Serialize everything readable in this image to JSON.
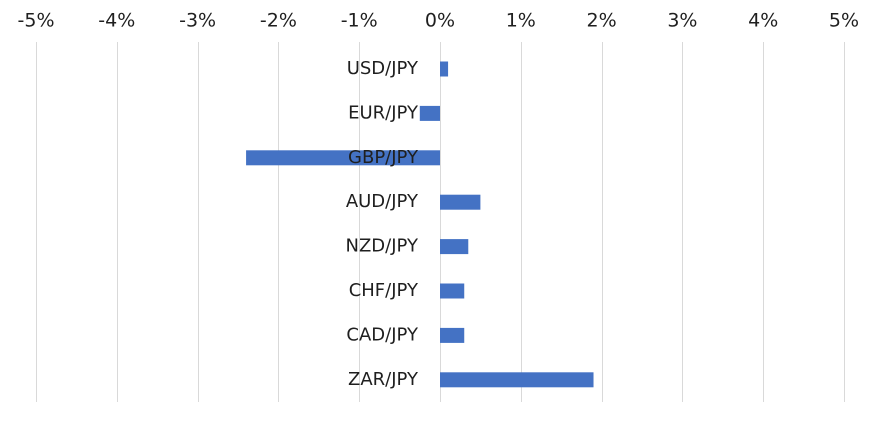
{
  "chart_data": {
    "type": "bar",
    "orientation": "horizontal",
    "title": "",
    "xlabel": "",
    "ylabel": "",
    "categories": [
      "USD/JPY",
      "EUR/JPY",
      "GBP/JPY",
      "AUD/JPY",
      "NZD/JPY",
      "CHF/JPY",
      "CAD/JPY",
      "ZAR/JPY"
    ],
    "values": [
      0.1,
      -0.25,
      -2.4,
      0.5,
      0.35,
      0.3,
      0.3,
      1.9
    ],
    "unit": "%",
    "xlim": [
      -5,
      5
    ],
    "x_ticks": [
      "-5%",
      "-4%",
      "-3%",
      "-2%",
      "-1%",
      "0%",
      "1%",
      "2%",
      "3%",
      "4%",
      "5%"
    ],
    "x_tick_values": [
      -5,
      -4,
      -3,
      -2,
      -1,
      0,
      1,
      2,
      3,
      4,
      5
    ],
    "x_axis_position": "top",
    "grid": true,
    "legend": "none",
    "colors": {
      "bar": "#4472c4",
      "grid": "#d9d9d9",
      "text": "#1f1f1f"
    }
  }
}
